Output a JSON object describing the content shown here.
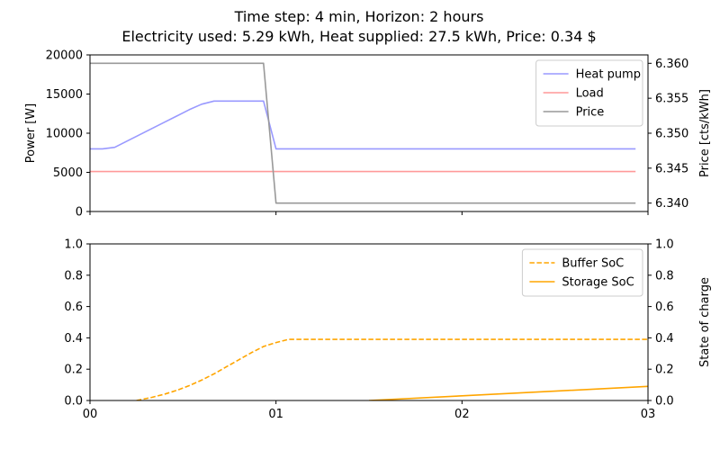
{
  "title": {
    "line1": "Time step: 4 min, Horizon: 2 hours",
    "line2": "Electricity used: 5.29 kWh, Heat supplied: 27.5 kWh, Price: 0.34 $"
  },
  "chart_data": [
    {
      "type": "line",
      "panel": "top",
      "xlabel": "",
      "x_tick_labels": [
        "00",
        "01",
        "02",
        "03"
      ],
      "xlim": [
        0,
        3
      ],
      "ylabel_left": "Power [W]",
      "ylim_left": [
        0,
        20000
      ],
      "yticks_left": [
        0,
        5000,
        10000,
        15000,
        20000
      ],
      "ylabel_right": "Price [cts/kWh]",
      "ylim_right": [
        6.3388,
        6.3612
      ],
      "yticks_right": [
        6.34,
        6.345,
        6.35,
        6.355,
        6.36
      ],
      "grid": false,
      "legend_position": "top-right",
      "series": [
        {
          "name": "Heat pump",
          "axis": "left",
          "color": "#9999ff",
          "style": "solid",
          "x": [
            0,
            0.067,
            0.133,
            0.2,
            0.267,
            0.333,
            0.4,
            0.467,
            0.533,
            0.6,
            0.667,
            0.733,
            0.8,
            0.867,
            0.933,
            1.0,
            1.067,
            1.5,
            2.0,
            2.5,
            2.933
          ],
          "y": [
            8000,
            8000,
            8200,
            9000,
            9800,
            10600,
            11400,
            12200,
            13000,
            13700,
            14100,
            14100,
            14100,
            14100,
            14100,
            8000,
            8000,
            8000,
            8000,
            8000,
            8000
          ]
        },
        {
          "name": "Load",
          "axis": "left",
          "color": "#ff9999",
          "style": "solid",
          "x": [
            0,
            2.933
          ],
          "y": [
            5100,
            5100
          ]
        },
        {
          "name": "Price",
          "axis": "right",
          "color": "#999999",
          "style": "solid",
          "x": [
            0,
            0.933,
            1.0,
            2.933
          ],
          "y": [
            6.36,
            6.36,
            6.34,
            6.34
          ]
        }
      ]
    },
    {
      "type": "line",
      "panel": "bottom",
      "xlabel": "",
      "x_tick_labels": [
        "00",
        "01",
        "02",
        "03"
      ],
      "xlim": [
        0,
        3
      ],
      "ylabel_left": "",
      "ylim_left": [
        0,
        1
      ],
      "yticks_left": [
        0.0,
        0.2,
        0.4,
        0.6,
        0.8,
        1.0
      ],
      "ylabel_right": "State of charge",
      "ylim_right": [
        0,
        1
      ],
      "yticks_right": [
        0.0,
        0.2,
        0.4,
        0.6,
        0.8,
        1.0
      ],
      "grid": false,
      "legend_position": "top-right",
      "series": [
        {
          "name": "Buffer SoC",
          "axis": "left",
          "color": "#ffa500",
          "style": "dashed",
          "x": [
            0.25,
            0.333,
            0.4,
            0.467,
            0.533,
            0.6,
            0.667,
            0.733,
            0.8,
            0.867,
            0.933,
            1.0,
            1.067,
            1.5,
            2.0,
            2.5,
            3.0
          ],
          "y": [
            0.0,
            0.02,
            0.04,
            0.065,
            0.095,
            0.13,
            0.17,
            0.215,
            0.26,
            0.305,
            0.345,
            0.37,
            0.39,
            0.39,
            0.39,
            0.39,
            0.39
          ]
        },
        {
          "name": "Storage SoC",
          "axis": "left",
          "color": "#ffa500",
          "style": "solid",
          "x": [
            1.5,
            2.0,
            2.5,
            3.0
          ],
          "y": [
            0.0,
            0.03,
            0.06,
            0.09
          ]
        }
      ]
    }
  ]
}
